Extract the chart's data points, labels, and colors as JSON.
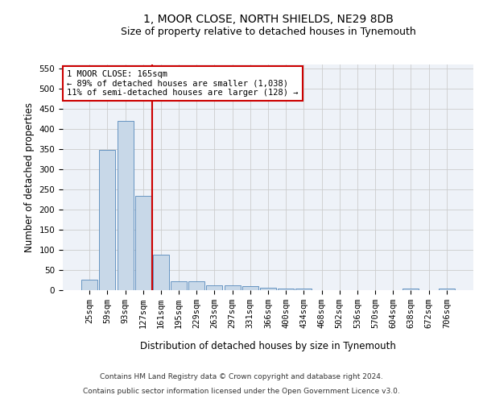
{
  "title": "1, MOOR CLOSE, NORTH SHIELDS, NE29 8DB",
  "subtitle": "Size of property relative to detached houses in Tynemouth",
  "xlabel": "Distribution of detached houses by size in Tynemouth",
  "ylabel": "Number of detached properties",
  "categories": [
    "25sqm",
    "59sqm",
    "93sqm",
    "127sqm",
    "161sqm",
    "195sqm",
    "229sqm",
    "263sqm",
    "297sqm",
    "331sqm",
    "366sqm",
    "400sqm",
    "434sqm",
    "468sqm",
    "502sqm",
    "536sqm",
    "570sqm",
    "604sqm",
    "638sqm",
    "672sqm",
    "706sqm"
  ],
  "values": [
    27,
    348,
    420,
    234,
    88,
    23,
    23,
    13,
    13,
    10,
    6,
    5,
    4,
    0,
    0,
    0,
    0,
    0,
    4,
    0,
    4
  ],
  "bar_color": "#c8d8e8",
  "bar_edge_color": "#5588bb",
  "vline_color": "#cc0000",
  "annotation_text": "1 MOOR CLOSE: 165sqm\n← 89% of detached houses are smaller (1,038)\n11% of semi-detached houses are larger (128) →",
  "annotation_box_color": "#ffffff",
  "annotation_box_edge": "#cc0000",
  "ylim": [
    0,
    560
  ],
  "yticks": [
    0,
    50,
    100,
    150,
    200,
    250,
    300,
    350,
    400,
    450,
    500,
    550
  ],
  "footer_line1": "Contains HM Land Registry data © Crown copyright and database right 2024.",
  "footer_line2": "Contains public sector information licensed under the Open Government Licence v3.0.",
  "bg_color": "#eef2f8",
  "title_fontsize": 10,
  "subtitle_fontsize": 9,
  "axis_label_fontsize": 8.5,
  "tick_fontsize": 7.5,
  "annotation_fontsize": 7.5,
  "footer_fontsize": 6.5
}
